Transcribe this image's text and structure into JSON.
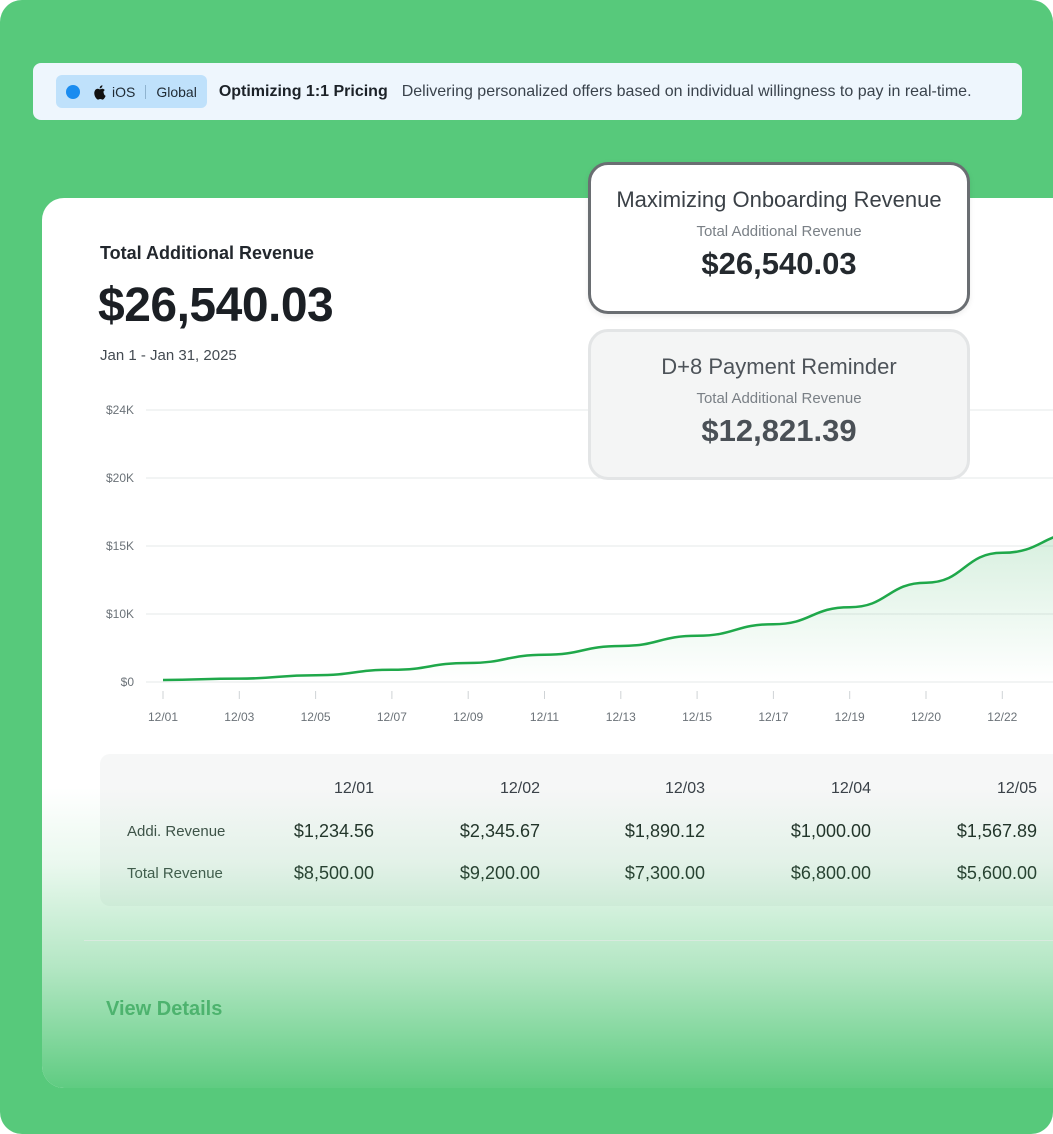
{
  "banner": {
    "platform": "iOS",
    "region": "Global",
    "title": "Optimizing 1:1 Pricing",
    "description": "Delivering personalized offers based on individual willingness to pay in real-time."
  },
  "summary": {
    "label": "Total Additional Revenue",
    "value": "$26,540.03",
    "date_range": "Jan 1 - Jan 31, 2025"
  },
  "popovers": [
    {
      "title": "Maximizing Onboarding Revenue",
      "label": "Total Additional Revenue",
      "value": "$26,540.03"
    },
    {
      "title": "D+8 Payment Reminder",
      "label": "Total Additional Revenue",
      "value": "$12,821.39"
    }
  ],
  "chart_data": {
    "type": "area",
    "y_ticks": [
      "$24K",
      "$20K",
      "$15K",
      "$10K",
      "$0"
    ],
    "x_ticks": [
      "12/01",
      "12/03",
      "12/05",
      "12/07",
      "12/09",
      "12/11",
      "12/13",
      "12/15",
      "12/17",
      "12/19",
      "12/20",
      "12/22"
    ],
    "ylim": [
      0,
      24000
    ],
    "series": [
      {
        "values": [
          300,
          500,
          1000,
          1800,
          2800,
          4000,
          5300,
          6800,
          8500,
          10500,
          12300,
          14500
        ]
      }
    ],
    "grid": true,
    "color": "#1fa84a"
  },
  "table": {
    "dates": [
      "12/01",
      "12/02",
      "12/03",
      "12/04",
      "12/05"
    ],
    "rows": [
      {
        "label": "Addi. Revenue",
        "values": [
          "$1,234.56",
          "$2,345.67",
          "$1,890.12",
          "$1,000.00",
          "$1,567.89"
        ]
      },
      {
        "label": "Total Revenue",
        "values": [
          "$8,500.00",
          "$9,200.00",
          "$7,300.00",
          "$6,800.00",
          "$5,600.00"
        ]
      }
    ]
  },
  "view_details_label": "View Details",
  "colors": {
    "background": "#57c97b",
    "accent": "#1fa84a",
    "chip": "#bfe1fb"
  }
}
